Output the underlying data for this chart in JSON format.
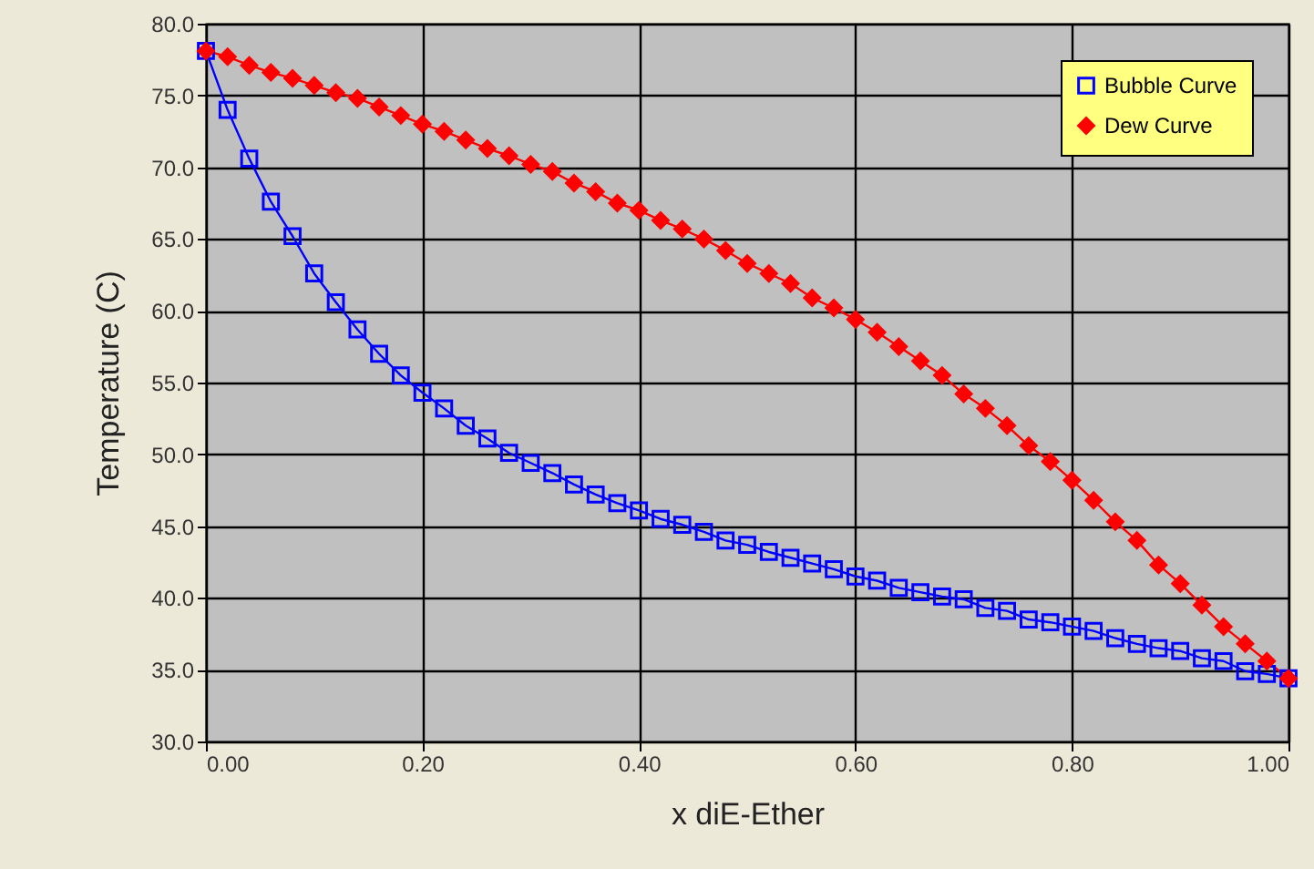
{
  "chart_data": {
    "type": "line",
    "xlabel": "x diE-Ether",
    "ylabel": "Temperature (C)",
    "x": [
      0,
      0.02,
      0.04,
      0.06,
      0.08,
      0.1,
      0.12,
      0.14,
      0.16,
      0.18,
      0.2,
      0.22,
      0.24,
      0.26,
      0.28,
      0.3,
      0.32,
      0.34,
      0.36,
      0.38,
      0.4,
      0.42,
      0.44,
      0.46,
      0.48,
      0.5,
      0.52,
      0.54,
      0.56,
      0.58,
      0.6,
      0.62,
      0.64,
      0.66,
      0.68,
      0.7,
      0.72,
      0.74,
      0.76,
      0.78,
      0.8,
      0.82,
      0.84,
      0.86,
      0.88,
      0.9,
      0.92,
      0.94,
      0.96,
      0.98,
      1.0
    ],
    "series": [
      {
        "name": "Bubble Curve",
        "color": "#0000ff",
        "marker": "square",
        "values": [
          78.1,
          74.0,
          70.6,
          67.6,
          65.2,
          62.6,
          60.6,
          58.7,
          57.0,
          55.5,
          54.3,
          53.2,
          52.0,
          51.1,
          50.1,
          49.4,
          48.7,
          47.9,
          47.2,
          46.6,
          46.1,
          45.5,
          45.1,
          44.6,
          44.0,
          43.7,
          43.2,
          42.8,
          42.4,
          42.0,
          41.5,
          41.2,
          40.7,
          40.4,
          40.1,
          39.9,
          39.3,
          39.1,
          38.5,
          38.3,
          38.0,
          37.7,
          37.2,
          36.8,
          36.5,
          36.3,
          35.8,
          35.6,
          34.9,
          34.7,
          34.4
        ]
      },
      {
        "name": "Dew Curve",
        "color": "#ff0000",
        "marker": "diamond",
        "values": [
          78.1,
          77.7,
          77.1,
          76.6,
          76.2,
          75.7,
          75.2,
          74.8,
          74.2,
          73.6,
          73.0,
          72.5,
          71.9,
          71.3,
          70.8,
          70.2,
          69.7,
          68.9,
          68.3,
          67.5,
          67.0,
          66.3,
          65.7,
          65.0,
          64.2,
          63.3,
          62.6,
          61.9,
          60.9,
          60.2,
          59.4,
          58.5,
          57.5,
          56.5,
          55.5,
          54.2,
          53.2,
          52.0,
          50.6,
          49.5,
          48.2,
          46.8,
          45.3,
          44.0,
          42.3,
          41.0,
          39.5,
          38.0,
          36.8,
          35.6,
          34.4
        ]
      }
    ],
    "xlim": [
      0,
      1
    ],
    "xticks": [
      {
        "value": 0,
        "label": "0.00"
      },
      {
        "value": 0.2,
        "label": "0.20"
      },
      {
        "value": 0.4,
        "label": "0.40"
      },
      {
        "value": 0.6,
        "label": "0.60"
      },
      {
        "value": 0.8,
        "label": "0.80"
      },
      {
        "value": 1,
        "label": "1.00"
      }
    ],
    "ylim": [
      30,
      80
    ],
    "yticks": [
      {
        "value": 30,
        "label": "30.0"
      },
      {
        "value": 35,
        "label": "35.0"
      },
      {
        "value": 40,
        "label": "40.0"
      },
      {
        "value": 45,
        "label": "45.0"
      },
      {
        "value": 50,
        "label": "50.0"
      },
      {
        "value": 55,
        "label": "55.0"
      },
      {
        "value": 60,
        "label": "60.0"
      },
      {
        "value": 65,
        "label": "65.0"
      },
      {
        "value": 70,
        "label": "70.0"
      },
      {
        "value": 75,
        "label": "75.0"
      },
      {
        "value": 80,
        "label": "80.0"
      }
    ],
    "grid": true,
    "legend": "top right"
  }
}
